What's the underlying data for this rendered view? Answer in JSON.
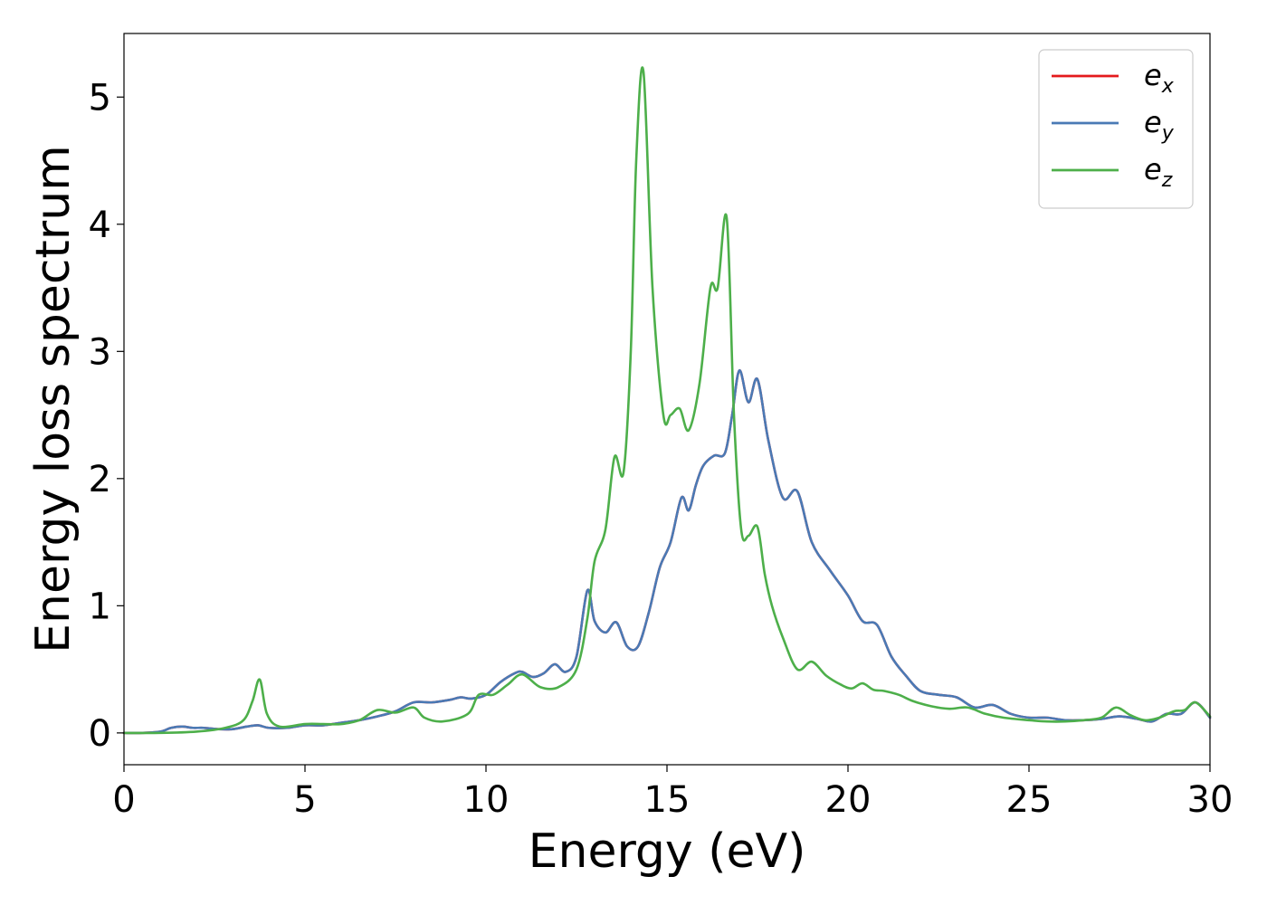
{
  "chart_data": {
    "type": "line",
    "title": "",
    "xlabel": "Energy (eV)",
    "ylabel": "Energy loss spectrum",
    "xlim": [
      0,
      30
    ],
    "ylim": [
      -0.25,
      5.5
    ],
    "xticks": [
      0,
      5,
      10,
      15,
      20,
      25,
      30
    ],
    "xtick_labels": [
      "0",
      "5",
      "10",
      "15",
      "20",
      "25",
      "30"
    ],
    "yticks": [
      0,
      1,
      2,
      3,
      4,
      5
    ],
    "ytick_labels": [
      "0",
      "1",
      "2",
      "3",
      "4",
      "5"
    ],
    "grid": false,
    "legend_position": "top-right",
    "series": [
      {
        "name": "e_x",
        "label_main": "e",
        "label_sub": "x",
        "color": "#e41a1c",
        "x": [
          0,
          0.5,
          1,
          1.3,
          1.6,
          1.9,
          2.2,
          2.6,
          3.0,
          3.4,
          3.7,
          4.0,
          4.5,
          5.0,
          5.5,
          6.0,
          6.5,
          7.0,
          7.5,
          8.0,
          8.5,
          9.0,
          9.3,
          9.6,
          10.0,
          10.4,
          10.8,
          11.0,
          11.3,
          11.6,
          11.9,
          12.2,
          12.5,
          12.8,
          13.0,
          13.3,
          13.6,
          13.9,
          14.2,
          14.5,
          14.8,
          15.1,
          15.4,
          15.6,
          15.8,
          16.0,
          16.3,
          16.6,
          16.8,
          17.0,
          17.25,
          17.5,
          17.8,
          18.2,
          18.6,
          19.0,
          19.5,
          20.0,
          20.4,
          20.8,
          21.2,
          21.6,
          22.0,
          22.5,
          23.0,
          23.5,
          24.0,
          24.5,
          25.0,
          25.5,
          26.0,
          26.5,
          27.0,
          27.5,
          28.0,
          28.4,
          28.8,
          29.2,
          29.6,
          30.0
        ],
        "values": [
          0.0,
          0.0,
          0.01,
          0.04,
          0.05,
          0.04,
          0.04,
          0.03,
          0.03,
          0.05,
          0.06,
          0.04,
          0.04,
          0.06,
          0.06,
          0.08,
          0.1,
          0.13,
          0.17,
          0.24,
          0.24,
          0.26,
          0.28,
          0.27,
          0.3,
          0.4,
          0.47,
          0.48,
          0.44,
          0.47,
          0.54,
          0.48,
          0.6,
          1.12,
          0.88,
          0.79,
          0.87,
          0.68,
          0.68,
          0.95,
          1.3,
          1.5,
          1.85,
          1.75,
          1.95,
          2.1,
          2.18,
          2.2,
          2.5,
          2.85,
          2.6,
          2.78,
          2.3,
          1.85,
          1.9,
          1.5,
          1.28,
          1.08,
          0.88,
          0.85,
          0.6,
          0.45,
          0.33,
          0.3,
          0.28,
          0.2,
          0.22,
          0.15,
          0.12,
          0.12,
          0.1,
          0.1,
          0.11,
          0.13,
          0.11,
          0.09,
          0.15,
          0.15,
          0.24,
          0.12
        ]
      },
      {
        "name": "e_y",
        "label_main": "e",
        "label_sub": "y",
        "color": "#4a7ab5",
        "x": [
          0,
          0.5,
          1,
          1.3,
          1.6,
          1.9,
          2.2,
          2.6,
          3.0,
          3.4,
          3.7,
          4.0,
          4.5,
          5.0,
          5.5,
          6.0,
          6.5,
          7.0,
          7.5,
          8.0,
          8.5,
          9.0,
          9.3,
          9.6,
          10.0,
          10.4,
          10.8,
          11.0,
          11.3,
          11.6,
          11.9,
          12.2,
          12.5,
          12.8,
          13.0,
          13.3,
          13.6,
          13.9,
          14.2,
          14.5,
          14.8,
          15.1,
          15.4,
          15.6,
          15.8,
          16.0,
          16.3,
          16.6,
          16.8,
          17.0,
          17.25,
          17.5,
          17.8,
          18.2,
          18.6,
          19.0,
          19.5,
          20.0,
          20.4,
          20.8,
          21.2,
          21.6,
          22.0,
          22.5,
          23.0,
          23.5,
          24.0,
          24.5,
          25.0,
          25.5,
          26.0,
          26.5,
          27.0,
          27.5,
          28.0,
          28.4,
          28.8,
          29.2,
          29.6,
          30.0
        ],
        "values": [
          0.0,
          0.0,
          0.01,
          0.04,
          0.05,
          0.04,
          0.04,
          0.03,
          0.03,
          0.05,
          0.06,
          0.04,
          0.04,
          0.06,
          0.06,
          0.08,
          0.1,
          0.13,
          0.17,
          0.24,
          0.24,
          0.26,
          0.28,
          0.27,
          0.3,
          0.4,
          0.47,
          0.48,
          0.44,
          0.47,
          0.54,
          0.48,
          0.6,
          1.12,
          0.88,
          0.79,
          0.87,
          0.68,
          0.68,
          0.95,
          1.3,
          1.5,
          1.85,
          1.75,
          1.95,
          2.1,
          2.18,
          2.2,
          2.5,
          2.85,
          2.6,
          2.78,
          2.3,
          1.85,
          1.9,
          1.5,
          1.28,
          1.08,
          0.88,
          0.85,
          0.6,
          0.45,
          0.33,
          0.3,
          0.28,
          0.2,
          0.22,
          0.15,
          0.12,
          0.12,
          0.1,
          0.1,
          0.11,
          0.13,
          0.11,
          0.09,
          0.15,
          0.15,
          0.24,
          0.12
        ]
      },
      {
        "name": "e_z",
        "label_main": "e",
        "label_sub": "z",
        "color": "#4daf4a",
        "x": [
          0,
          1.0,
          2.0,
          2.8,
          3.3,
          3.55,
          3.75,
          3.95,
          4.3,
          5.0,
          5.5,
          6.0,
          6.5,
          7.0,
          7.5,
          8.0,
          8.3,
          8.8,
          9.5,
          9.8,
          10.2,
          10.6,
          11.0,
          11.5,
          12.0,
          12.5,
          12.8,
          13.0,
          13.3,
          13.55,
          13.8,
          14.0,
          14.15,
          14.35,
          14.6,
          14.9,
          15.1,
          15.35,
          15.6,
          15.9,
          16.2,
          16.4,
          16.65,
          16.85,
          17.05,
          17.25,
          17.5,
          17.7,
          17.9,
          18.2,
          18.6,
          19.0,
          19.4,
          19.8,
          20.1,
          20.4,
          20.7,
          21.0,
          21.4,
          21.8,
          22.3,
          22.8,
          23.3,
          23.8,
          24.3,
          25.0,
          25.5,
          26.0,
          26.5,
          27.0,
          27.4,
          27.8,
          28.2,
          28.6,
          29.0,
          29.3,
          29.6,
          30.0
        ],
        "values": [
          0.0,
          0.0,
          0.01,
          0.04,
          0.1,
          0.25,
          0.42,
          0.15,
          0.05,
          0.07,
          0.07,
          0.07,
          0.1,
          0.18,
          0.16,
          0.2,
          0.12,
          0.09,
          0.15,
          0.3,
          0.3,
          0.38,
          0.46,
          0.36,
          0.36,
          0.5,
          0.9,
          1.35,
          1.6,
          2.17,
          2.05,
          3.0,
          4.5,
          5.2,
          3.5,
          2.5,
          2.5,
          2.55,
          2.38,
          2.75,
          3.5,
          3.5,
          4.05,
          2.5,
          1.6,
          1.55,
          1.62,
          1.25,
          1.0,
          0.75,
          0.5,
          0.56,
          0.45,
          0.38,
          0.35,
          0.39,
          0.34,
          0.33,
          0.3,
          0.25,
          0.21,
          0.19,
          0.2,
          0.15,
          0.12,
          0.1,
          0.09,
          0.09,
          0.1,
          0.12,
          0.2,
          0.14,
          0.1,
          0.12,
          0.17,
          0.18,
          0.24,
          0.13
        ]
      }
    ]
  }
}
